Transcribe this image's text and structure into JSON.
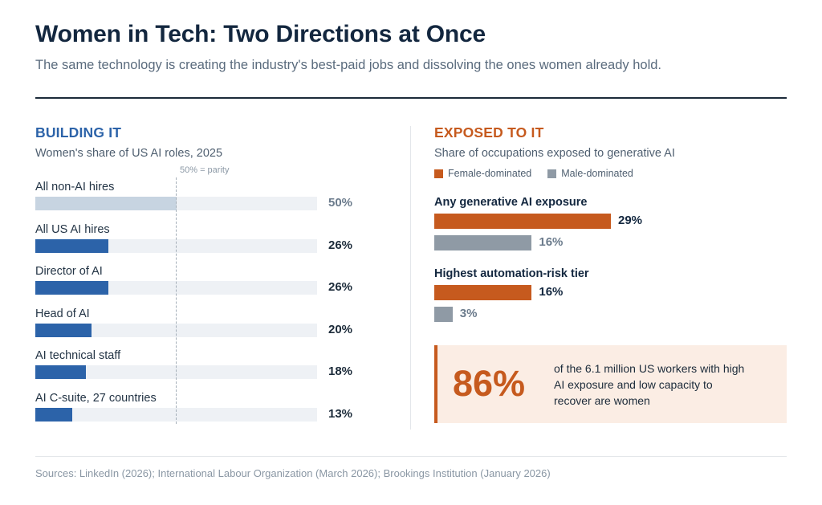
{
  "header": {
    "title": "Women in Tech: Two Directions at Once",
    "subtitle": "The same technology is creating the industry's best-paid jobs and dissolving the ones women already hold."
  },
  "left_panel": {
    "heading": "BUILDING IT",
    "subheading": "Women's share of US AI roles, 2025",
    "parity_label": "50% = parity"
  },
  "right_panel": {
    "heading": "EXPOSED TO IT",
    "subheading": "Share of occupations exposed to generative AI",
    "legend": [
      "Female-dominated",
      "Male-dominated"
    ]
  },
  "callout": {
    "value": "86%",
    "text": "of the 6.1 million US workers with high AI exposure and low capacity to recover are women"
  },
  "source": "Sources: LinkedIn (2026); International Labour Organization (March 2026); Brookings Institution (January 2026)",
  "colors": {
    "blue": "#2c63a9",
    "muted_blue": "#c7d4e1",
    "orange": "#c65a1e",
    "gray": "#8f9aa5",
    "track": "#eef1f5"
  },
  "chart_data": [
    {
      "type": "bar",
      "orientation": "horizontal",
      "categories": [
        "All non-AI hires",
        "All US AI hires",
        "Director of AI",
        "Head of AI",
        "AI technical staff",
        "AI C-suite, 27 countries"
      ],
      "values": [
        50,
        26,
        26,
        20,
        18,
        13
      ],
      "value_labels": [
        "50%",
        "26%",
        "26%",
        "20%",
        "18%",
        "13%"
      ],
      "xlim": [
        0,
        100
      ],
      "reference_line": 50
    },
    {
      "type": "bar",
      "orientation": "horizontal",
      "groups": [
        "Any generative AI exposure",
        "Highest automation-risk tier"
      ],
      "series": [
        {
          "name": "Female-dominated",
          "values": [
            29,
            16
          ],
          "labels": [
            "29%",
            "16%"
          ],
          "color": "#c65a1e"
        },
        {
          "name": "Male-dominated",
          "values": [
            16,
            3
          ],
          "labels": [
            "16%",
            "3%"
          ],
          "color": "#8f9aa5"
        }
      ],
      "xlim": [
        0,
        58
      ],
      "legend": "top-left"
    }
  ]
}
